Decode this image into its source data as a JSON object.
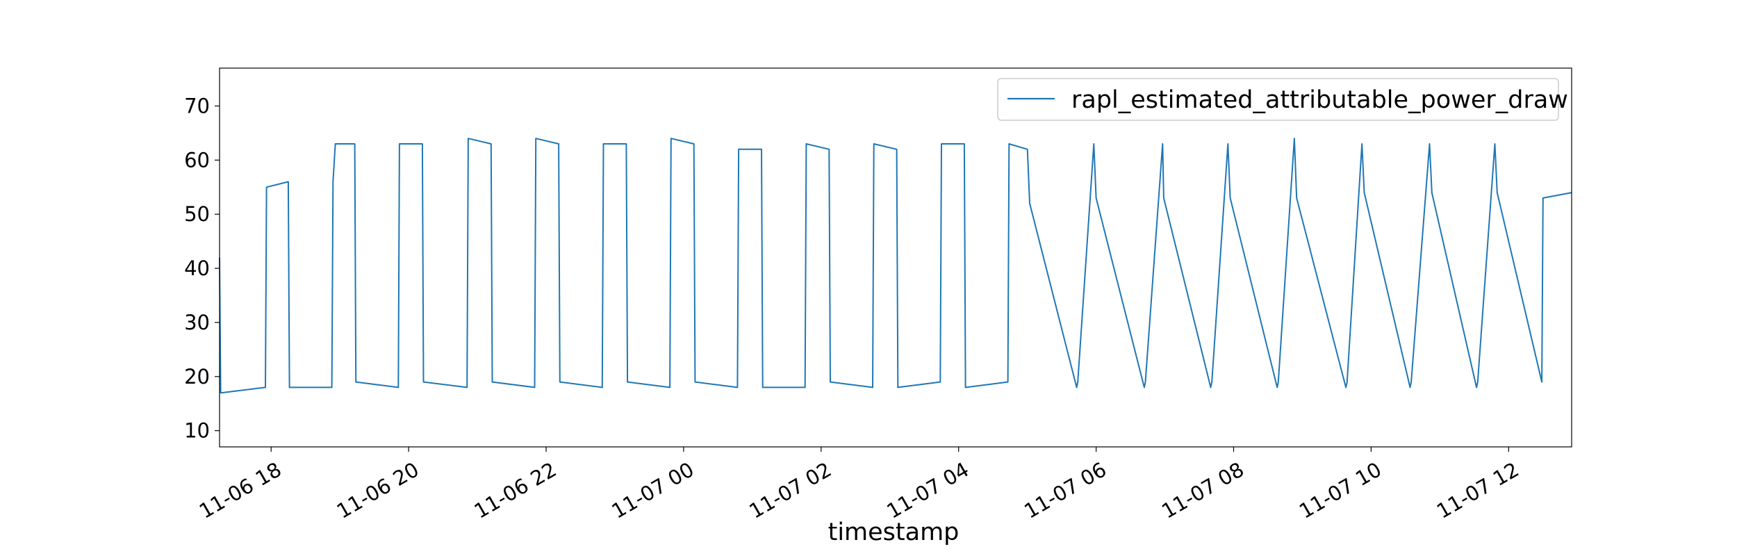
{
  "chart_data": {
    "type": "line",
    "title": "",
    "xlabel": "timestamp",
    "ylabel": "",
    "xlim": [
      "2023-11-06 17:15",
      "2023-11-07 12:55"
    ],
    "ylim": [
      7,
      77
    ],
    "grid": false,
    "legend_position": "top-right",
    "x_tick_labels": [
      "11-06 18",
      "11-06 20",
      "11-06 22",
      "11-07 00",
      "11-07 02",
      "11-07 04",
      "11-07 06",
      "11-07 08",
      "11-07 10",
      "11-07 12"
    ],
    "x_ticks": [
      "2023-11-06 18:00",
      "2023-11-06 20:00",
      "2023-11-06 22:00",
      "2023-11-07 00:00",
      "2023-11-07 02:00",
      "2023-11-07 04:00",
      "2023-11-07 06:00",
      "2023-11-07 08:00",
      "2023-11-07 10:00",
      "2023-11-07 12:00"
    ],
    "y_ticks": [
      10,
      20,
      30,
      40,
      50,
      60,
      70
    ],
    "series": [
      {
        "name": "rapl_estimated_attributable_power_draw",
        "color": "#1f77b4",
        "x": [
          "2023-11-06 17:15",
          "2023-11-06 17:16",
          "2023-11-06 17:17",
          "2023-11-06 17:55",
          "2023-11-06 17:56",
          "2023-11-06 18:15",
          "2023-11-06 18:16",
          "2023-11-06 18:53",
          "2023-11-06 18:54",
          "2023-11-06 18:56",
          "2023-11-06 19:13",
          "2023-11-06 19:14",
          "2023-11-06 19:51",
          "2023-11-06 19:52",
          "2023-11-06 20:12",
          "2023-11-06 20:13",
          "2023-11-06 20:51",
          "2023-11-06 20:52",
          "2023-11-06 21:12",
          "2023-11-06 21:13",
          "2023-11-06 21:50",
          "2023-11-06 21:51",
          "2023-11-06 22:11",
          "2023-11-06 22:12",
          "2023-11-06 22:49",
          "2023-11-06 22:50",
          "2023-11-06 23:10",
          "2023-11-06 23:11",
          "2023-11-06 23:48",
          "2023-11-06 23:49",
          "2023-11-07 00:09",
          "2023-11-07 00:10",
          "2023-11-07 00:47",
          "2023-11-07 00:48",
          "2023-11-07 01:08",
          "2023-11-07 01:09",
          "2023-11-07 01:46",
          "2023-11-07 01:47",
          "2023-11-07 02:07",
          "2023-11-07 02:08",
          "2023-11-07 02:45",
          "2023-11-07 02:46",
          "2023-11-07 03:06",
          "2023-11-07 03:07",
          "2023-11-07 03:44",
          "2023-11-07 03:45",
          "2023-11-07 04:05",
          "2023-11-07 04:06",
          "2023-11-07 04:43",
          "2023-11-07 04:44",
          "2023-11-07 05:00",
          "2023-11-07 05:02",
          "2023-11-07 05:43",
          "2023-11-07 05:44",
          "2023-11-07 05:58",
          "2023-11-07 06:00",
          "2023-11-07 06:42",
          "2023-11-07 06:43",
          "2023-11-07 06:58",
          "2023-11-07 06:59",
          "2023-11-07 07:40",
          "2023-11-07 07:41",
          "2023-11-07 07:55",
          "2023-11-07 07:57",
          "2023-11-07 08:38",
          "2023-11-07 08:39",
          "2023-11-07 08:53",
          "2023-11-07 08:55",
          "2023-11-07 09:38",
          "2023-11-07 09:39",
          "2023-11-07 09:52",
          "2023-11-07 09:54",
          "2023-11-07 10:34",
          "2023-11-07 10:35",
          "2023-11-07 10:51",
          "2023-11-07 10:53",
          "2023-11-07 11:32",
          "2023-11-07 11:33",
          "2023-11-07 11:48",
          "2023-11-07 11:50",
          "2023-11-07 12:29",
          "2023-11-07 12:30",
          "2023-11-07 12:55"
        ],
        "y": [
          42,
          17,
          17,
          18,
          55,
          56,
          18,
          18,
          56,
          63,
          63,
          19,
          18,
          63,
          63,
          19,
          18,
          64,
          63,
          19,
          18,
          64,
          63,
          19,
          18,
          63,
          63,
          19,
          18,
          64,
          63,
          19,
          18,
          62,
          62,
          18,
          18,
          63,
          62,
          19,
          18,
          63,
          62,
          18,
          19,
          63,
          63,
          18,
          19,
          63,
          62,
          52,
          18,
          19,
          63,
          53,
          18,
          19,
          63,
          53,
          18,
          19,
          63,
          53,
          18,
          19,
          64,
          53,
          18,
          19,
          63,
          54,
          18,
          19,
          63,
          54,
          18,
          19,
          63,
          54,
          19,
          53,
          54
        ]
      }
    ]
  }
}
